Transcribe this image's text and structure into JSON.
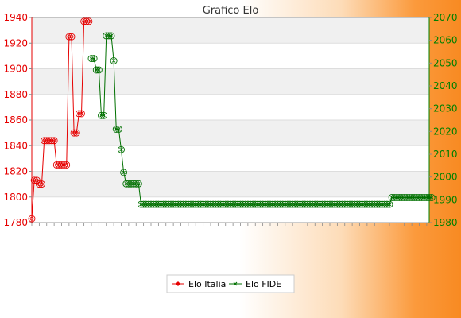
{
  "chart_data": {
    "type": "line",
    "title": "Grafico Elo",
    "y_left": {
      "min": 1780,
      "max": 1940,
      "ticks": [
        1780,
        1800,
        1820,
        1840,
        1860,
        1880,
        1900,
        1920,
        1940
      ],
      "color": "#e60000"
    },
    "y_right": {
      "min": 1980,
      "max": 2070,
      "ticks": [
        1980,
        1990,
        2000,
        2010,
        2020,
        2030,
        2040,
        2050,
        2060,
        2070
      ],
      "color": "#008000"
    },
    "grid": true,
    "legend_position": "bottom",
    "x_count": 161,
    "x_tick_labels": [],
    "series": [
      {
        "name": "Elo Italia",
        "axis": "left",
        "color": "#e60000",
        "marker": "diamond",
        "values": [
          1783,
          1813,
          1813,
          1810,
          1810,
          1844,
          1844,
          1844,
          1844,
          1844,
          1825,
          1825,
          1825,
          1825,
          1825,
          1925,
          1925,
          1850,
          1850,
          1865,
          1865,
          1937,
          1937,
          1937
        ]
      },
      {
        "name": "Elo FIDE",
        "axis": "right",
        "color": "#007000",
        "marker": "circle",
        "start_index": 24,
        "values": [
          2052,
          2052,
          2047,
          2047,
          2027,
          2027,
          2062,
          2062,
          2062,
          2051,
          2021,
          2021,
          2012,
          2002,
          1997,
          1997,
          1997,
          1997,
          1997,
          1997,
          1988,
          1988,
          1988,
          1988,
          1988,
          1988,
          1988,
          1988,
          1988,
          1988,
          1988,
          1988,
          1988,
          1988,
          1988,
          1988,
          1988,
          1988,
          1988,
          1988,
          1988,
          1988,
          1988,
          1988,
          1988,
          1988,
          1988,
          1988,
          1988,
          1988,
          1988,
          1988,
          1988,
          1988,
          1988,
          1988,
          1988,
          1988,
          1988,
          1988,
          1988,
          1988,
          1988,
          1988,
          1988,
          1988,
          1988,
          1988,
          1988,
          1988,
          1988,
          1988,
          1988,
          1988,
          1988,
          1988,
          1988,
          1988,
          1988,
          1988,
          1988,
          1988,
          1988,
          1988,
          1988,
          1988,
          1988,
          1988,
          1988,
          1988,
          1988,
          1988,
          1988,
          1988,
          1988,
          1988,
          1988,
          1988,
          1988,
          1988,
          1988,
          1988,
          1988,
          1988,
          1988,
          1988,
          1988,
          1988,
          1988,
          1988,
          1988,
          1988,
          1988,
          1988,
          1988,
          1988,
          1988,
          1988,
          1988,
          1988,
          1988,
          1991,
          1991,
          1991,
          1991,
          1991,
          1991,
          1991,
          1991,
          1991,
          1991,
          1991,
          1991,
          1991,
          1991,
          1991,
          1991,
          1991
        ]
      }
    ]
  }
}
